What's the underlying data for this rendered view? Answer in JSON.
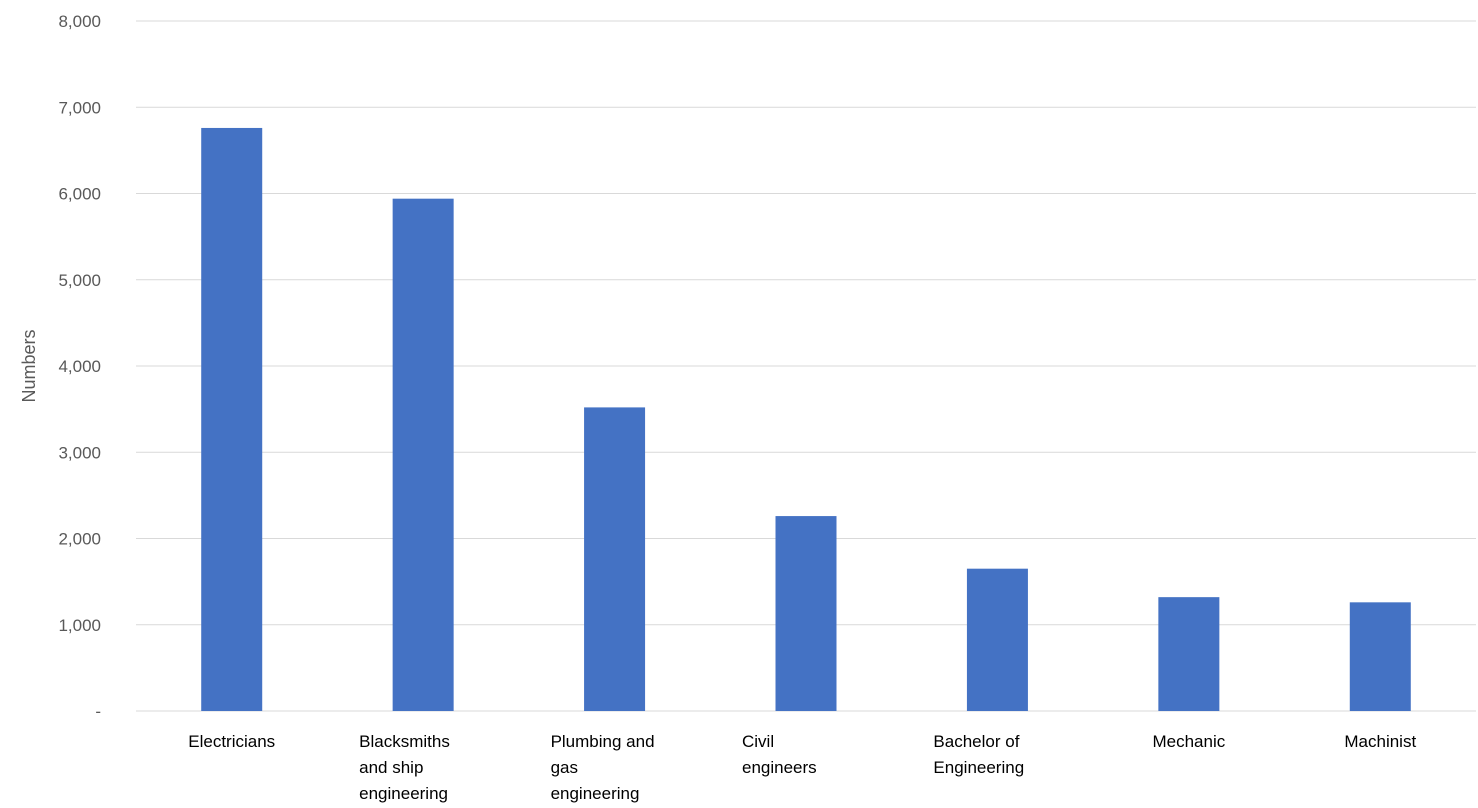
{
  "chart_data": {
    "type": "bar",
    "title": "",
    "xlabel": "",
    "ylabel": "Numbers",
    "ylim": [
      0,
      8000
    ],
    "yticks": [
      {
        "value": 0,
        "label": "-"
      },
      {
        "value": 1000,
        "label": "1,000"
      },
      {
        "value": 2000,
        "label": "2,000"
      },
      {
        "value": 3000,
        "label": "3,000"
      },
      {
        "value": 4000,
        "label": "4,000"
      },
      {
        "value": 5000,
        "label": "5,000"
      },
      {
        "value": 6000,
        "label": "6,000"
      },
      {
        "value": 7000,
        "label": "7,000"
      },
      {
        "value": 8000,
        "label": "8,000"
      }
    ],
    "categories": [
      [
        "Electricians"
      ],
      [
        "Blacksmiths",
        "and ship",
        "engineering"
      ],
      [
        "Plumbing and",
        "gas",
        "engineering"
      ],
      [
        "Civil",
        "engineers"
      ],
      [
        "Bachelor of",
        "Engineering"
      ],
      [
        "Mechanic"
      ],
      [
        "Machinist"
      ]
    ],
    "values": [
      6760,
      5940,
      3520,
      2260,
      1650,
      1320,
      1260
    ],
    "grid": true,
    "legend": "none",
    "colors": {
      "bar": "#4472C4",
      "grid": "#D9D9D9",
      "axis_text": "#595959",
      "category_text": "#000000"
    }
  }
}
